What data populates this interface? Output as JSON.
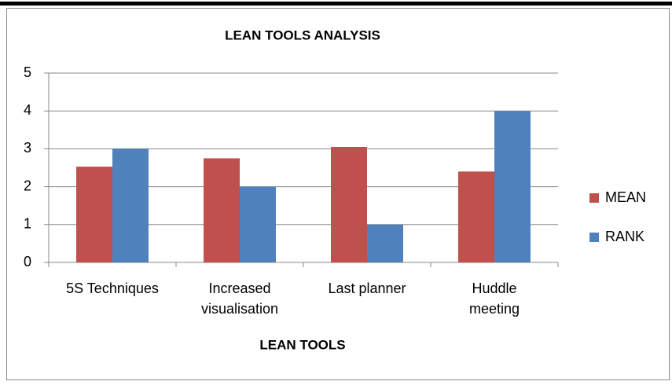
{
  "chart_data": {
    "type": "bar",
    "title": "LEAN TOOLS ANALYSIS",
    "x_label": "LEAN TOOLS",
    "categories": [
      "5S Techniques",
      "Increased\nvisualisation",
      "Last planner",
      "Huddle\nmeeting"
    ],
    "series": [
      {
        "name": "MEAN",
        "color": "#c0504d",
        "values": [
          2.53,
          2.75,
          3.05,
          2.4
        ]
      },
      {
        "name": "RANK",
        "color": "#4f81bd",
        "values": [
          3,
          2,
          1,
          4
        ]
      }
    ],
    "ylim": [
      0,
      5
    ],
    "yticks": [
      0,
      1,
      2,
      3,
      4,
      5
    ],
    "grid": true,
    "legend": "right"
  }
}
